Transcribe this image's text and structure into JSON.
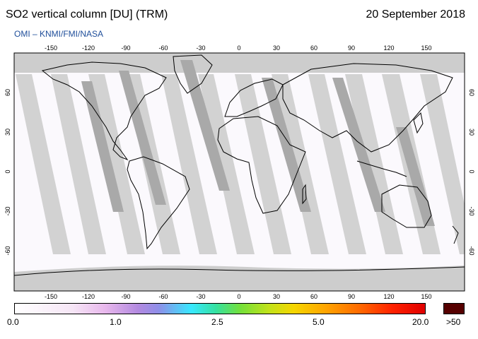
{
  "title": "SO2 vertical column [DU] (TRM)",
  "date": "20 September 2018",
  "subtitle": "OMI  –  KNMI/FMI/NASA",
  "map": {
    "lon_ticks": [
      "-150",
      "-120",
      "-90",
      "-60",
      "-30",
      "0",
      "30",
      "60",
      "90",
      "120",
      "150"
    ],
    "lat_ticks": [
      "60",
      "30",
      "0",
      "-30",
      "-60"
    ],
    "colors": {
      "ocean": "#fbf9fd",
      "no_data": "#cdcdcd",
      "dark_swath": "#a5a5a5",
      "border": "#000000"
    }
  },
  "colorbar": {
    "labels": [
      "0.0",
      "1.0",
      "2.5",
      "5.0",
      "20.0"
    ],
    "over_label": ">50",
    "over_color": "#560000"
  }
}
